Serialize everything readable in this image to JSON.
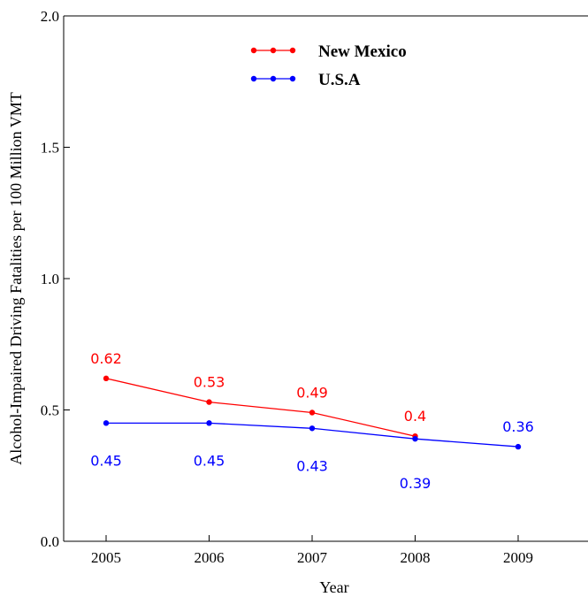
{
  "chart_data": {
    "type": "line",
    "title": "",
    "xlabel": "Year",
    "ylabel": "Alcohol-Impaired Driving Fatalities per 100 Million VMT",
    "categories": [
      "2005",
      "2006",
      "2007",
      "2008",
      "2009"
    ],
    "ylim": [
      0.0,
      2.0
    ],
    "yticks": [
      "0.0",
      "0.5",
      "1.0",
      "1.5",
      "2.0"
    ],
    "grid": false,
    "legend_position": "top-center",
    "series": [
      {
        "name": "New Mexico",
        "color": "#ff0000",
        "values": [
          0.62,
          0.53,
          0.49,
          0.4,
          null
        ],
        "labels": [
          "0.62",
          "0.53",
          "0.49",
          "0.4",
          null
        ]
      },
      {
        "name": "U.S.A",
        "color": "#0000ff",
        "values": [
          0.45,
          0.45,
          0.43,
          0.39,
          0.36
        ],
        "labels": [
          "0.45",
          "0.45",
          "0.43",
          "0.39",
          "0.36"
        ]
      }
    ]
  }
}
